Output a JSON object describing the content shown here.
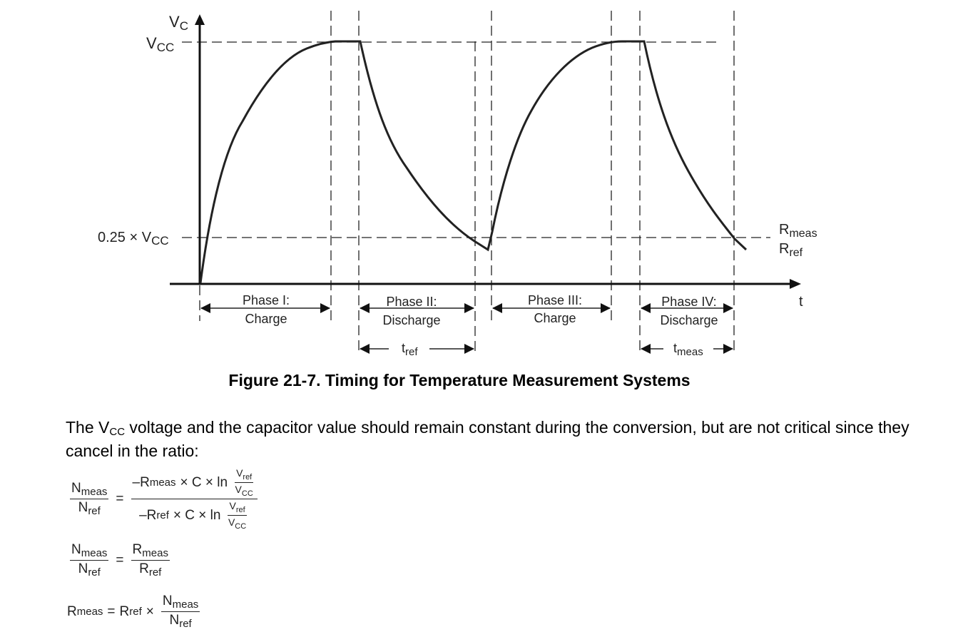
{
  "diagram": {
    "y_axis": {
      "main": "V",
      "sub": "C"
    },
    "x_axis": "t",
    "vcc_label": {
      "main": "V",
      "sub": "CC"
    },
    "quarter_label": {
      "prefix": "0.25 × V",
      "sub": "CC"
    },
    "rmeas_label": {
      "main": "R",
      "sub": "meas"
    },
    "rref_label": {
      "main": "R",
      "sub": "ref"
    },
    "phases": [
      {
        "title": "Phase I:",
        "name": "Charge"
      },
      {
        "title": "Phase II:",
        "name": "Discharge"
      },
      {
        "title": "Phase III:",
        "name": "Charge"
      },
      {
        "title": "Phase IV:",
        "name": "Discharge"
      }
    ],
    "tref": {
      "main": "t",
      "sub": "ref"
    },
    "tmeas": {
      "main": "t",
      "sub": "meas"
    }
  },
  "caption": "Figure 21-7. Timing for Temperature Measurement Systems",
  "paragraph": {
    "before": "The V",
    "sub": "CC",
    "after": " voltage and the capacitor value should remain constant during the conversion, but are not critical since they cancel in the ratio:"
  },
  "equations": {
    "N": "N",
    "R": "R",
    "V": "V",
    "meas": "meas",
    "ref": "ref",
    "cc": "CC",
    "eq": "=",
    "minus_r": "–R",
    "times_c_ln": "× C × ln",
    "times": "×"
  }
}
